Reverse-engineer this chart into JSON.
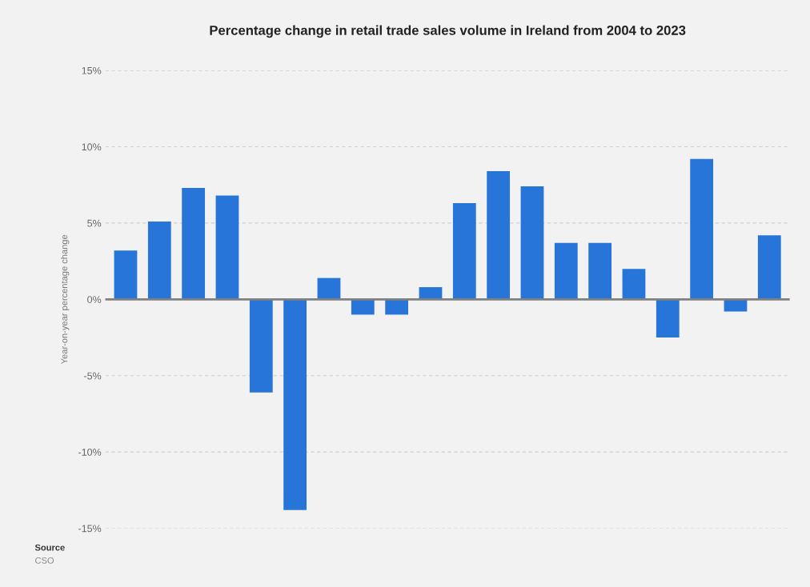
{
  "chart_data": {
    "type": "bar",
    "title": "Percentage change in retail trade sales volume in Ireland from 2004 to 2023",
    "ylabel": "Year-on-year percentage change",
    "categories": [
      null,
      null,
      null,
      null,
      null,
      null,
      null,
      null,
      null,
      null,
      null,
      null,
      null,
      null,
      null,
      null,
      null,
      null,
      null,
      null
    ],
    "values": [
      3.2,
      5.1,
      7.3,
      6.8,
      -6.1,
      -13.8,
      1.4,
      -1.0,
      -1.0,
      0.8,
      6.3,
      8.4,
      7.4,
      3.7,
      3.7,
      2.0,
      -2.5,
      9.2,
      -0.8,
      4.2
    ],
    "color": "#2775d9",
    "ylim": [
      -15,
      15
    ],
    "yticks": [
      {
        "value": -15,
        "label": "-15%"
      },
      {
        "value": -10,
        "label": "-10%"
      },
      {
        "value": -5,
        "label": "-5%"
      },
      {
        "value": 0,
        "label": "0%"
      },
      {
        "value": 5,
        "label": "5%"
      },
      {
        "value": 10,
        "label": "10%"
      },
      {
        "value": 15,
        "label": "15%"
      }
    ],
    "grid": "y",
    "ref_lines": [
      {
        "axis": "y",
        "value": 0,
        "label": null,
        "color": "#808080"
      }
    ],
    "annotations": [
      "Source",
      "CSO"
    ]
  }
}
